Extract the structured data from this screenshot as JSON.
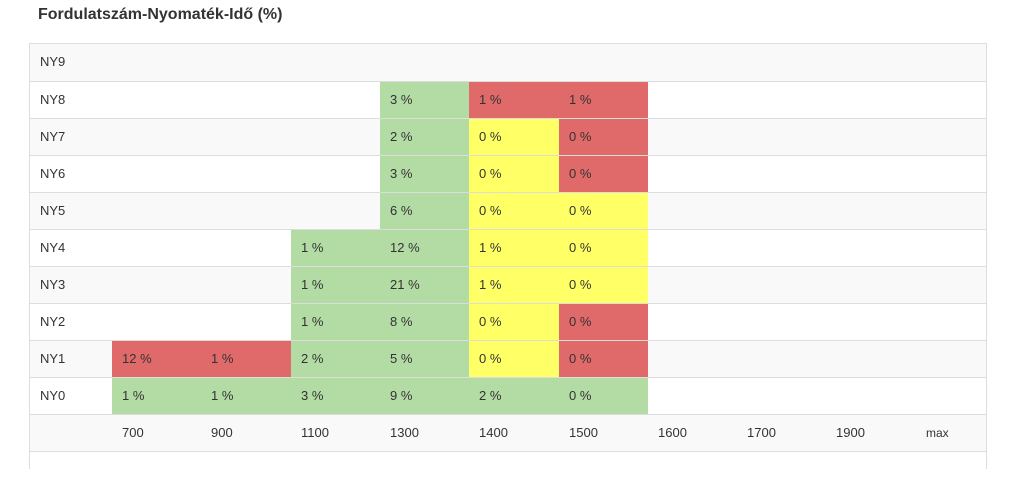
{
  "title": "Fordulatszám-Nyomaték-Idő (%)",
  "colors": {
    "low": "#b3dba4",
    "medium": "#ffff66",
    "high": "#e06a6a"
  },
  "chart_data": {
    "type": "heatmap",
    "title": "Fordulatszám-Nyomaték-Idő (%)",
    "x_categories": [
      "700",
      "900",
      "1100",
      "1300",
      "1400",
      "1500",
      "1600",
      "1700",
      "1900",
      "max"
    ],
    "y_categories": [
      "NY9",
      "NY8",
      "NY7",
      "NY6",
      "NY5",
      "NY4",
      "NY3",
      "NY2",
      "NY1",
      "NY0"
    ],
    "rows": [
      {
        "label": "NY9",
        "cells": []
      },
      {
        "label": "NY8",
        "cells": [
          {
            "col": 3,
            "text": "3 %",
            "value": 3,
            "level": "low"
          },
          {
            "col": 4,
            "text": "1 %",
            "value": 1,
            "level": "high"
          },
          {
            "col": 5,
            "text": "1 %",
            "value": 1,
            "level": "high"
          }
        ]
      },
      {
        "label": "NY7",
        "cells": [
          {
            "col": 3,
            "text": "2 %",
            "value": 2,
            "level": "low"
          },
          {
            "col": 4,
            "text": "0 %",
            "value": 0,
            "level": "medium"
          },
          {
            "col": 5,
            "text": "0 %",
            "value": 0,
            "level": "high"
          }
        ]
      },
      {
        "label": "NY6",
        "cells": [
          {
            "col": 3,
            "text": "3 %",
            "value": 3,
            "level": "low"
          },
          {
            "col": 4,
            "text": "0 %",
            "value": 0,
            "level": "medium"
          },
          {
            "col": 5,
            "text": "0 %",
            "value": 0,
            "level": "high"
          }
        ]
      },
      {
        "label": "NY5",
        "cells": [
          {
            "col": 3,
            "text": "6 %",
            "value": 6,
            "level": "low"
          },
          {
            "col": 4,
            "text": "0 %",
            "value": 0,
            "level": "medium"
          },
          {
            "col": 5,
            "text": "0 %",
            "value": 0,
            "level": "medium"
          }
        ]
      },
      {
        "label": "NY4",
        "cells": [
          {
            "col": 2,
            "text": "1 %",
            "value": 1,
            "level": "low"
          },
          {
            "col": 3,
            "text": "12 %",
            "value": 12,
            "level": "low"
          },
          {
            "col": 4,
            "text": "1 %",
            "value": 1,
            "level": "medium"
          },
          {
            "col": 5,
            "text": "0 %",
            "value": 0,
            "level": "medium"
          }
        ]
      },
      {
        "label": "NY3",
        "cells": [
          {
            "col": 2,
            "text": "1 %",
            "value": 1,
            "level": "low"
          },
          {
            "col": 3,
            "text": "21 %",
            "value": 21,
            "level": "low"
          },
          {
            "col": 4,
            "text": "1 %",
            "value": 1,
            "level": "medium"
          },
          {
            "col": 5,
            "text": "0 %",
            "value": 0,
            "level": "medium"
          }
        ]
      },
      {
        "label": "NY2",
        "cells": [
          {
            "col": 2,
            "text": "1 %",
            "value": 1,
            "level": "low"
          },
          {
            "col": 3,
            "text": "8 %",
            "value": 8,
            "level": "low"
          },
          {
            "col": 4,
            "text": "0 %",
            "value": 0,
            "level": "medium"
          },
          {
            "col": 5,
            "text": "0 %",
            "value": 0,
            "level": "high"
          }
        ]
      },
      {
        "label": "NY1",
        "cells": [
          {
            "col": 0,
            "text": "12 %",
            "value": 12,
            "level": "high"
          },
          {
            "col": 1,
            "text": "1 %",
            "value": 1,
            "level": "high"
          },
          {
            "col": 2,
            "text": "2 %",
            "value": 2,
            "level": "low"
          },
          {
            "col": 3,
            "text": "5 %",
            "value": 5,
            "level": "low"
          },
          {
            "col": 4,
            "text": "0 %",
            "value": 0,
            "level": "medium"
          },
          {
            "col": 5,
            "text": "0 %",
            "value": 0,
            "level": "high"
          }
        ]
      },
      {
        "label": "NY0",
        "cells": [
          {
            "col": 0,
            "text": "1 %",
            "value": 1,
            "level": "low"
          },
          {
            "col": 1,
            "text": "1 %",
            "value": 1,
            "level": "low"
          },
          {
            "col": 2,
            "text": "3 %",
            "value": 3,
            "level": "low"
          },
          {
            "col": 3,
            "text": "9 %",
            "value": 9,
            "level": "low"
          },
          {
            "col": 4,
            "text": "2 %",
            "value": 2,
            "level": "low"
          },
          {
            "col": 5,
            "text": "0 %",
            "value": 0,
            "level": "low"
          }
        ]
      }
    ]
  }
}
